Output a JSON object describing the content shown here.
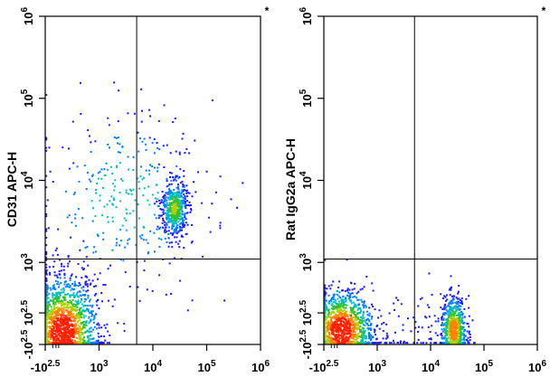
{
  "colors": {
    "background": "#ffffff",
    "axis": "#000000",
    "gate_lines": "#000000",
    "density_scale": [
      "#1a1aff",
      "#0080ff",
      "#00c0c0",
      "#30c030",
      "#b0d000",
      "#ff8000",
      "#ff2000"
    ]
  },
  "chart_data": [
    {
      "type": "scatter",
      "style": "flow cytometry density dot plot with quadrant gate",
      "xscale": "biexponential",
      "yscale": "biexponential",
      "xlim": [
        -316.2,
        1000000
      ],
      "ylim": [
        -316.2,
        1000000
      ],
      "x_tick_labels": [
        "-10^2.5",
        "10^3",
        "10^4",
        "10^5",
        "10^6"
      ],
      "y_tick_labels": [
        "-10^2.5",
        "10^2.5",
        "10^3",
        "10^4",
        "10^5",
        "10^6"
      ],
      "xlabel": "",
      "ylabel": "CD31 APC-H",
      "corner_mark": "*",
      "grid": false,
      "quadrant_gate": {
        "x": 5000,
        "y": 1100
      },
      "populations": [
        {
          "x_center": 250,
          "y_center": 40,
          "count": 1900,
          "spread_x": 0.32,
          "spread_y": 0.34
        },
        {
          "x_center": 25000,
          "y_center": 4500,
          "count": 520,
          "spread_x": 0.12,
          "spread_y": 0.17
        },
        {
          "x_center": 3000,
          "y_center": 6000,
          "count": 330,
          "spread_x": 0.8,
          "spread_y": 0.55
        }
      ]
    },
    {
      "type": "scatter",
      "style": "flow cytometry density dot plot with quadrant gate",
      "xscale": "biexponential",
      "yscale": "biexponential",
      "xlim": [
        -316.2,
        1000000
      ],
      "ylim": [
        -316.2,
        1000000
      ],
      "x_tick_labels": [
        "-10^2.5",
        "10^3",
        "10^4",
        "10^5",
        "10^6"
      ],
      "y_tick_labels": [
        "-10^2.5",
        "10^2.5",
        "10^3",
        "10^4",
        "10^5",
        "10^6"
      ],
      "xlabel": "",
      "ylabel": "Rat IgG2a APC-H",
      "corner_mark": "*",
      "grid": false,
      "quadrant_gate": {
        "x": 5000,
        "y": 1100
      },
      "populations": [
        {
          "x_center": 250,
          "y_center": 80,
          "count": 1400,
          "spread_x": 0.3,
          "spread_y": 0.24
        },
        {
          "x_center": 27000,
          "y_center": 80,
          "count": 720,
          "spread_x": 0.12,
          "spread_y": 0.2
        },
        {
          "x_center": 4000,
          "y_center": 80,
          "count": 70,
          "spread_x": 0.45,
          "spread_y": 0.25
        }
      ]
    }
  ]
}
